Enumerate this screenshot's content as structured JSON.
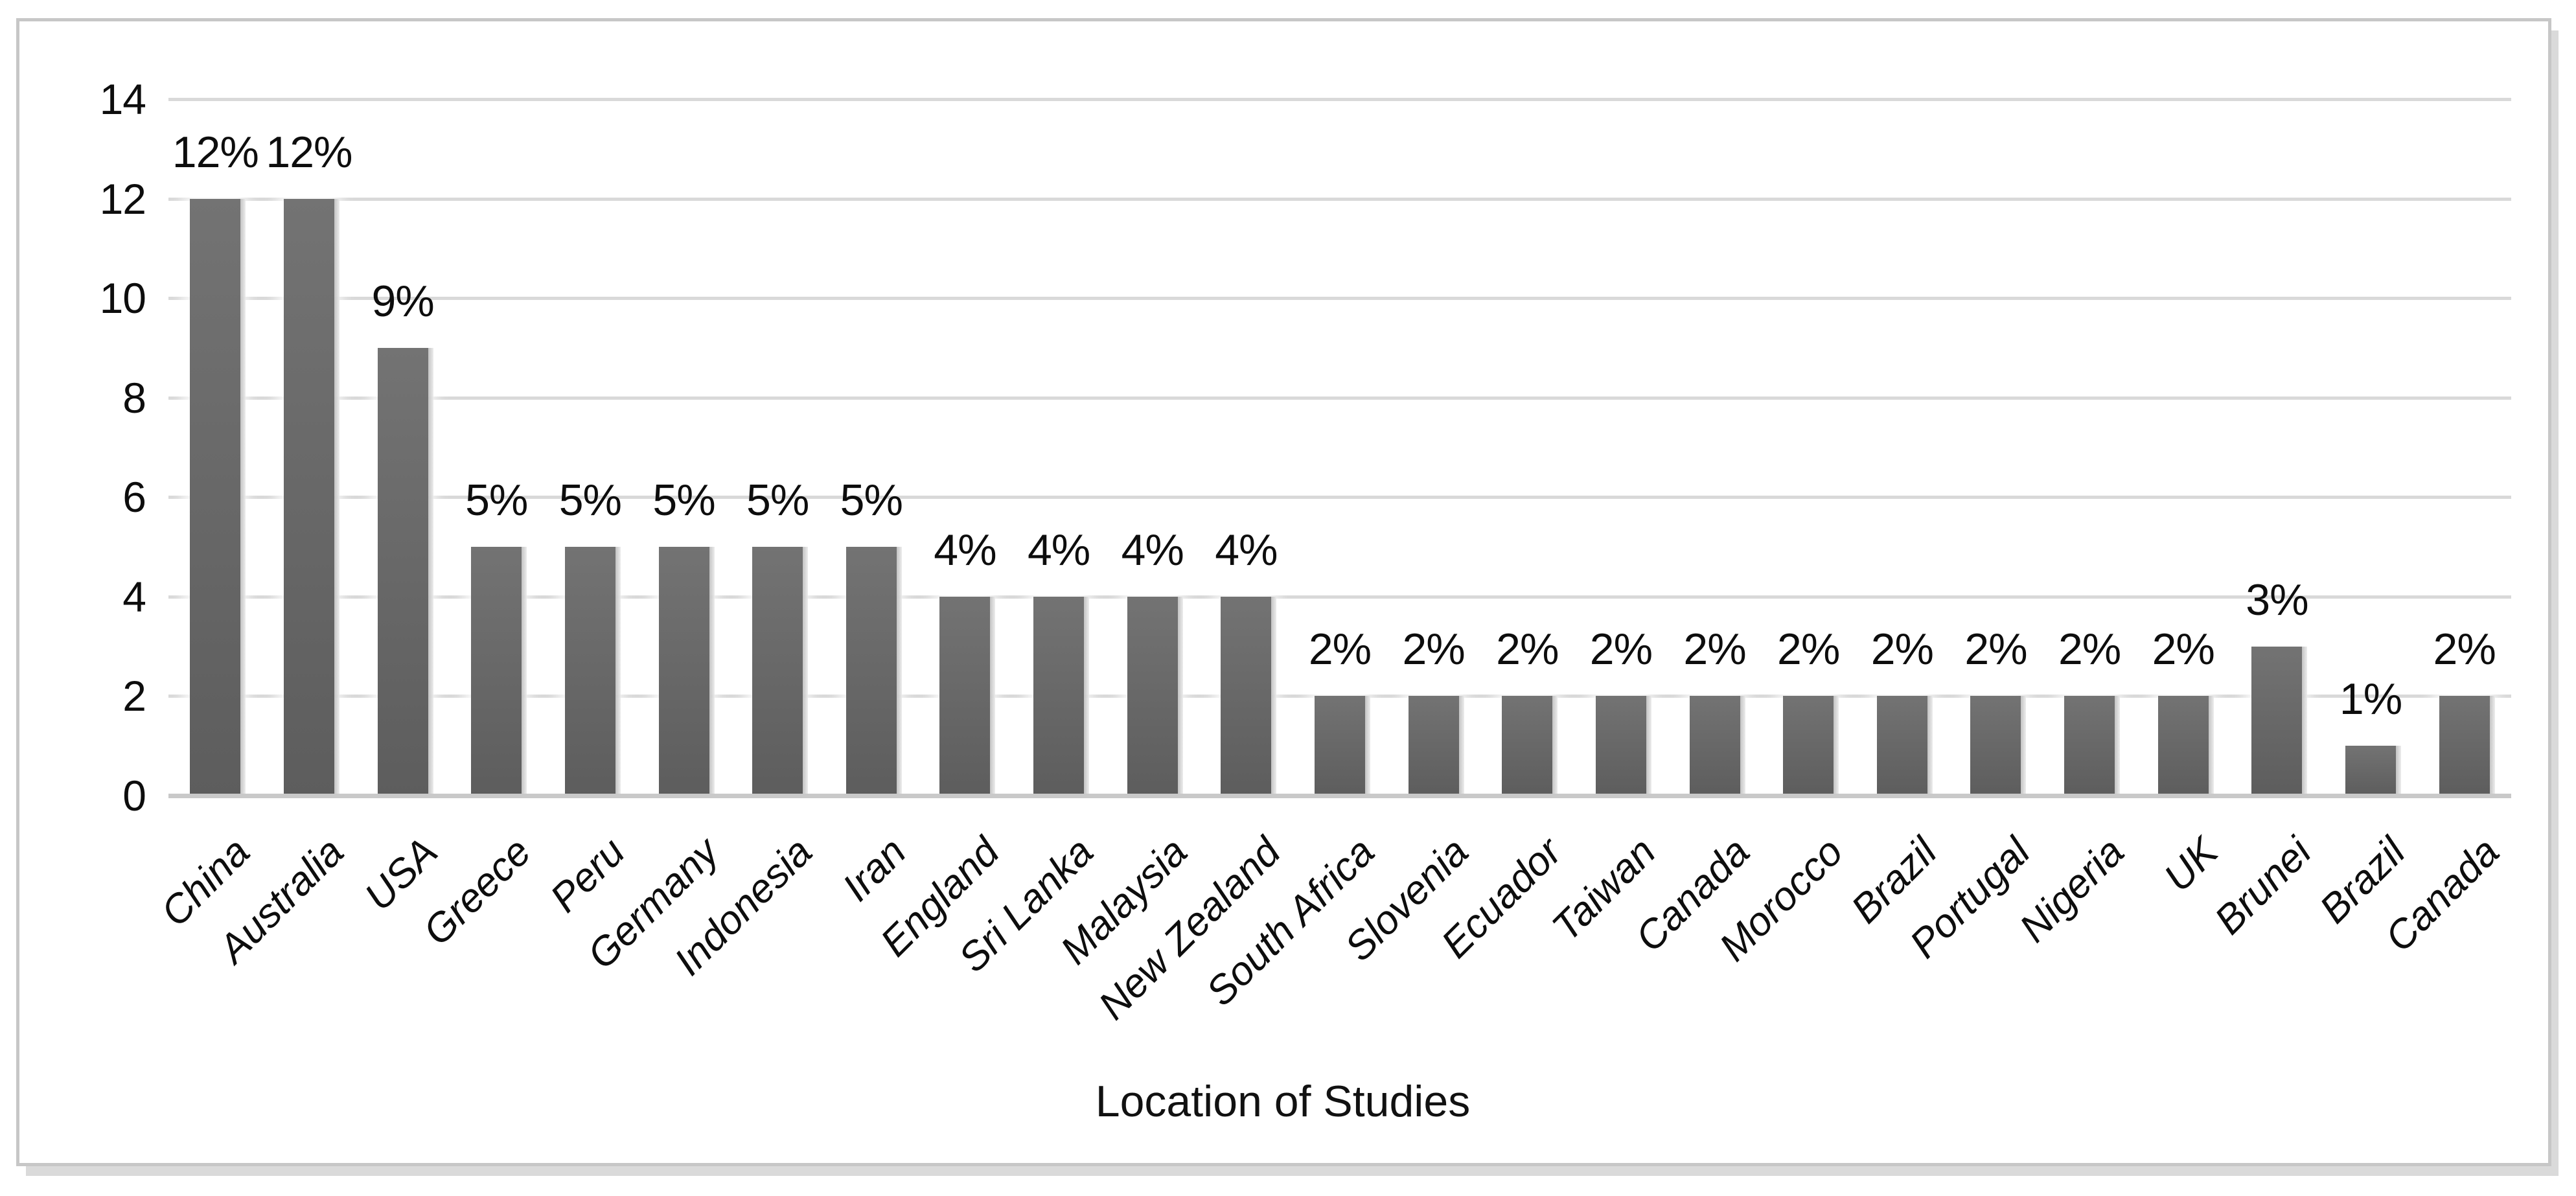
{
  "chart_data": {
    "type": "bar",
    "title": "",
    "xlabel": "Location of Studies",
    "ylabel": "",
    "categories": [
      "China",
      "Australia",
      "USA",
      "Greece",
      "Peru",
      "Germany",
      "Indonesia",
      "Iran",
      "England",
      "Sri Lanka",
      "Malaysia",
      "New Zealand",
      "South Africa",
      "Slovenia",
      "Ecuador",
      "Taiwan",
      "Canada",
      "Morocco",
      "Brazil",
      "Portugal",
      "Nigeria",
      "UK",
      "Brunei",
      "Brazil",
      "Canada"
    ],
    "values": [
      12,
      12,
      9,
      5,
      5,
      5,
      5,
      5,
      4,
      4,
      4,
      4,
      2,
      2,
      2,
      2,
      2,
      2,
      2,
      2,
      2,
      2,
      3,
      1,
      2
    ],
    "data_labels": [
      "12%",
      "12%",
      "9%",
      "5%",
      "5%",
      "5%",
      "5%",
      "5%",
      "4%",
      "4%",
      "4%",
      "4%",
      "2%",
      "2%",
      "2%",
      "2%",
      "2%",
      "2%",
      "2%",
      "2%",
      "2%",
      "2%",
      "3%",
      "1%",
      "2%"
    ],
    "ylim": [
      0,
      14
    ],
    "yticks": [
      0,
      2,
      4,
      6,
      8,
      10,
      12,
      14
    ],
    "grid": true,
    "legend": "none",
    "bar_color": "#696969",
    "gridline_color": "#d9d9d9",
    "axis_line_color": "#c9c9c9",
    "frame_border_color": "#c7c7c7",
    "label_color": "#0d0d0d"
  }
}
